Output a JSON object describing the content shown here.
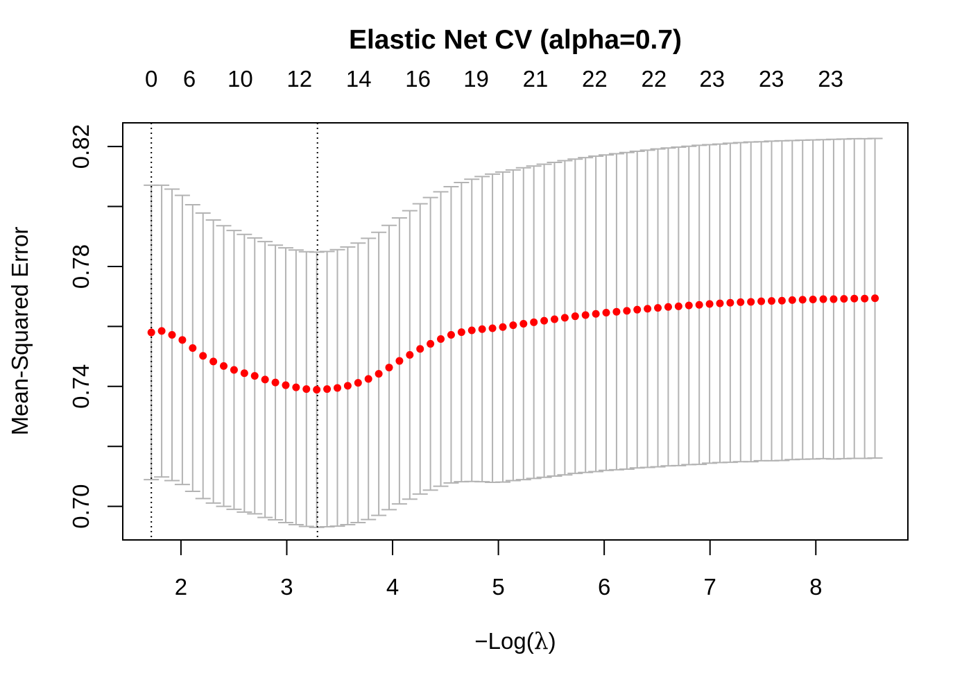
{
  "chart_data": {
    "type": "scatter",
    "title": "Elastic Net CV (alpha=0.7)",
    "xlabel_prefix": "−",
    "xlabel_func": "Log(",
    "xlabel_symbol": "λ",
    "xlabel_suffix": ")",
    "ylabel": "Mean-Squared Error",
    "xlim": [
      1.45,
      8.87
    ],
    "ylim": [
      0.6888,
      0.8279
    ],
    "x_ticks": [
      2,
      3,
      4,
      5,
      6,
      7,
      8
    ],
    "x_tick_labels": [
      "2",
      "3",
      "4",
      "5",
      "6",
      "7",
      "8"
    ],
    "y_ticks": [
      0.7,
      0.72,
      0.74,
      0.76,
      0.78,
      0.8,
      0.82
    ],
    "y_tick_labels": [
      "0.70",
      "",
      "0.74",
      "",
      "0.78",
      "",
      "0.82"
    ],
    "top_axis": {
      "x": [
        1.72,
        2.08,
        2.56,
        3.12,
        3.68,
        4.24,
        4.79,
        5.35,
        5.91,
        6.47,
        7.02,
        7.58,
        8.14
      ],
      "labels": [
        "0",
        "6",
        "10",
        "12",
        "14",
        "16",
        "19",
        "21",
        "22",
        "22",
        "23",
        "23",
        "23"
      ]
    },
    "vlines": [
      1.72,
      3.29
    ],
    "series": [
      {
        "point_color": "#ff0000",
        "bar_color": "#b3b3b3",
        "x": [
          1.72,
          1.8177,
          1.9154,
          2.0131,
          2.1108,
          2.2085,
          2.3062,
          2.4039,
          2.5016,
          2.5993,
          2.697,
          2.7947,
          2.8924,
          2.9901,
          3.0878,
          3.1855,
          3.2832,
          3.3809,
          3.4786,
          3.5763,
          3.674,
          3.7717,
          3.8694,
          3.9671,
          4.0648,
          4.1625,
          4.2602,
          4.3579,
          4.4556,
          4.5533,
          4.651,
          4.7487,
          4.8464,
          4.9441,
          5.0418,
          5.1395,
          5.2372,
          5.3349,
          5.4326,
          5.5303,
          5.628,
          5.7257,
          5.8234,
          5.9211,
          6.0188,
          6.1165,
          6.2142,
          6.3119,
          6.4096,
          6.5073,
          6.605,
          6.7027,
          6.8004,
          6.8981,
          6.9958,
          7.0935,
          7.1912,
          7.2889,
          7.3866,
          7.4843,
          7.582,
          7.6797,
          7.7774,
          7.8751,
          7.9728,
          8.0705,
          8.1682,
          8.2659,
          8.3636,
          8.4613,
          8.559
        ],
        "mse": [
          0.758,
          0.7585,
          0.7572,
          0.7555,
          0.7528,
          0.7502,
          0.7483,
          0.7468,
          0.7455,
          0.7444,
          0.7435,
          0.7423,
          0.7413,
          0.7404,
          0.7397,
          0.7391,
          0.7389,
          0.7391,
          0.7395,
          0.7402,
          0.7412,
          0.7425,
          0.7442,
          0.7463,
          0.7485,
          0.7505,
          0.7525,
          0.7542,
          0.7558,
          0.7572,
          0.7581,
          0.7587,
          0.7591,
          0.7594,
          0.7598,
          0.7604,
          0.7609,
          0.7614,
          0.7619,
          0.7624,
          0.7629,
          0.7634,
          0.7638,
          0.7642,
          0.7646,
          0.7649,
          0.7652,
          0.7656,
          0.7659,
          0.7662,
          0.7665,
          0.7667,
          0.767,
          0.7672,
          0.7675,
          0.7677,
          0.7679,
          0.7681,
          0.7682,
          0.7684,
          0.7685,
          0.7686,
          0.7688,
          0.7689,
          0.769,
          0.7691,
          0.7691,
          0.7692,
          0.7693,
          0.7693,
          0.7694
        ],
        "upper": [
          0.8071,
          0.8071,
          0.8058,
          0.8037,
          0.8006,
          0.7978,
          0.7955,
          0.7936,
          0.792,
          0.7907,
          0.7895,
          0.7883,
          0.7871,
          0.7862,
          0.7855,
          0.7849,
          0.7848,
          0.785,
          0.7856,
          0.7865,
          0.7878,
          0.7894,
          0.7914,
          0.7937,
          0.7962,
          0.7986,
          0.8009,
          0.803,
          0.8049,
          0.8066,
          0.808,
          0.8091,
          0.81,
          0.8108,
          0.8115,
          0.8122,
          0.8129,
          0.8135,
          0.8141,
          0.8147,
          0.8153,
          0.8158,
          0.8163,
          0.8168,
          0.8172,
          0.8176,
          0.818,
          0.8184,
          0.8188,
          0.8192,
          0.8195,
          0.8198,
          0.8201,
          0.8204,
          0.8206,
          0.8208,
          0.8211,
          0.8213,
          0.8215,
          0.8216,
          0.8218,
          0.8219,
          0.822,
          0.8221,
          0.8222,
          0.8223,
          0.8224,
          0.8225,
          0.8226,
          0.8226,
          0.8227
        ],
        "lower": [
          0.7089,
          0.7098,
          0.7086,
          0.7073,
          0.705,
          0.7026,
          0.7011,
          0.7,
          0.699,
          0.6981,
          0.6975,
          0.6963,
          0.6955,
          0.6946,
          0.6939,
          0.6933,
          0.693,
          0.6932,
          0.6934,
          0.6939,
          0.6946,
          0.6956,
          0.697,
          0.6989,
          0.7008,
          0.7024,
          0.7041,
          0.7054,
          0.7067,
          0.7078,
          0.7082,
          0.7083,
          0.7082,
          0.708,
          0.7081,
          0.7086,
          0.7089,
          0.7093,
          0.7097,
          0.7101,
          0.7105,
          0.711,
          0.7113,
          0.7116,
          0.712,
          0.7122,
          0.7124,
          0.7128,
          0.713,
          0.7132,
          0.7135,
          0.7136,
          0.7139,
          0.714,
          0.7144,
          0.7146,
          0.7147,
          0.7149,
          0.7149,
          0.7152,
          0.7152,
          0.7153,
          0.7156,
          0.7157,
          0.7158,
          0.7159,
          0.7158,
          0.7159,
          0.716,
          0.716,
          0.7161
        ]
      }
    ]
  }
}
